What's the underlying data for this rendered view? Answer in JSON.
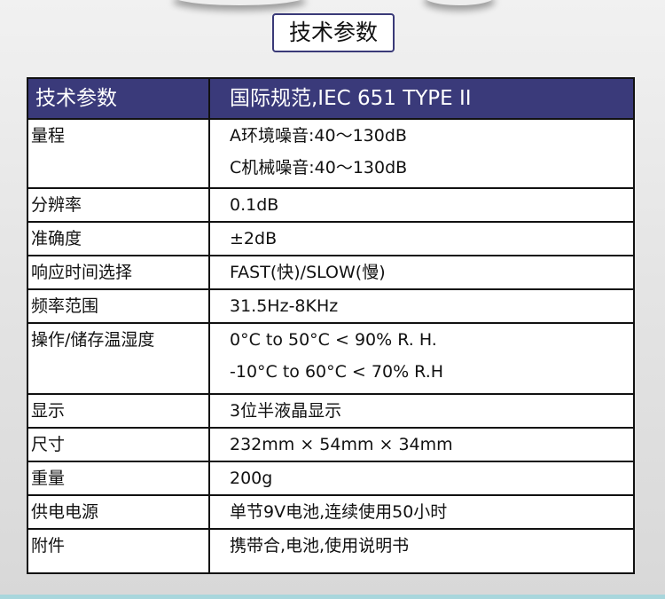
{
  "title": "技术参数",
  "table": {
    "header": [
      "技术参数",
      "国际规范,IEC 651 TYPE II"
    ],
    "rows": [
      {
        "label": "量程",
        "values": [
          "A环境噪音:40～130dB",
          "C机械噪音:40～130dB"
        ]
      },
      {
        "label": "分辨率",
        "values": [
          "0.1dB"
        ]
      },
      {
        "label": "准确度",
        "values": [
          "±2dB"
        ]
      },
      {
        "label": "响应时间选择",
        "values": [
          "FAST(快)/SLOW(慢)"
        ]
      },
      {
        "label": "频率范围",
        "values": [
          "31.5Hz-8KHz"
        ]
      },
      {
        "label": "操作/储存温湿度",
        "values": [
          "0°C to 50°C < 90% R. H.",
          "-10°C to 60°C < 70% R.H"
        ]
      },
      {
        "label": "显示",
        "values": [
          "3位半液晶显示"
        ]
      },
      {
        "label": "尺寸",
        "values": [
          "232mm × 54mm × 34mm"
        ]
      },
      {
        "label": "重量",
        "values": [
          "200g"
        ]
      },
      {
        "label": "供电电源",
        "values": [
          "单节9V电池,连续使用50小时"
        ]
      },
      {
        "label": "附件",
        "values": [
          "携带合,电池,使用说明书"
        ]
      }
    ]
  },
  "colors": {
    "header_bg": "#3a3a7a",
    "bottom_band": "#a8d6dc"
  }
}
